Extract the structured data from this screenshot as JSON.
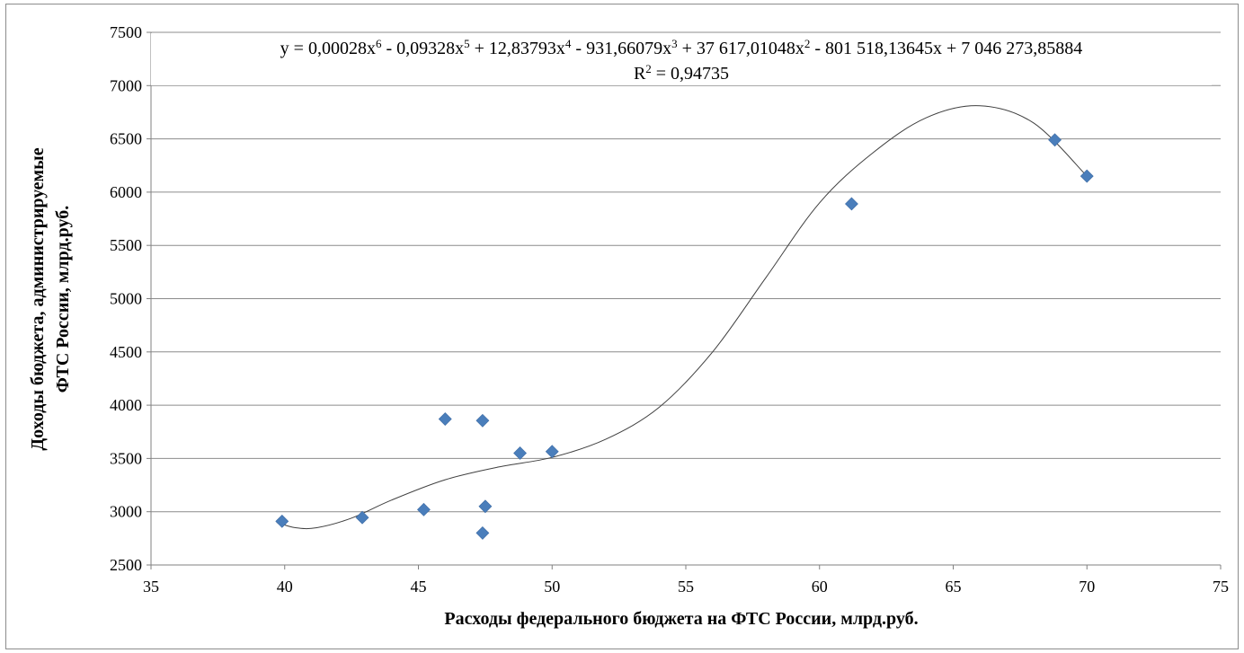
{
  "chart_data": {
    "type": "scatter",
    "title": "",
    "xlabel": "Расходы федерального бюджета на ФТС России, млрд.руб.",
    "ylabel_line1": "Доходы бюджета, администрируемые",
    "ylabel_line2": "ФТС России, млрд.руб.",
    "xlim": [
      35,
      75
    ],
    "ylim": [
      2500,
      7500
    ],
    "x_ticks": [
      "35",
      "40",
      "45",
      "50",
      "55",
      "60",
      "65",
      "70",
      "75"
    ],
    "y_ticks": [
      "2500",
      "3000",
      "3500",
      "4000",
      "4500",
      "5000",
      "5500",
      "6000",
      "6500",
      "7000",
      "7500"
    ],
    "grid": "horizontal",
    "legend": "none",
    "marker_color": "#4a7ebb",
    "trendline_color": "#404040",
    "points": [
      {
        "x": 39.9,
        "y": 2910
      },
      {
        "x": 42.9,
        "y": 2945
      },
      {
        "x": 45.2,
        "y": 3020
      },
      {
        "x": 46.0,
        "y": 3870
      },
      {
        "x": 47.4,
        "y": 3855
      },
      {
        "x": 47.5,
        "y": 3050
      },
      {
        "x": 47.4,
        "y": 2800
      },
      {
        "x": 48.8,
        "y": 3550
      },
      {
        "x": 50.0,
        "y": 3565
      },
      {
        "x": 61.2,
        "y": 5890
      },
      {
        "x": 68.8,
        "y": 6490
      },
      {
        "x": 70.0,
        "y": 6150
      }
    ],
    "trendline": {
      "type": "polynomial",
      "order": 6,
      "curve": [
        {
          "x": 39.7,
          "y": 2900
        },
        {
          "x": 40.4,
          "y": 2850
        },
        {
          "x": 41.2,
          "y": 2850
        },
        {
          "x": 42.5,
          "y": 2940
        },
        {
          "x": 44.0,
          "y": 3110
        },
        {
          "x": 46.0,
          "y": 3300
        },
        {
          "x": 48.0,
          "y": 3420
        },
        {
          "x": 50.0,
          "y": 3510
        },
        {
          "x": 52.0,
          "y": 3680
        },
        {
          "x": 54.0,
          "y": 3980
        },
        {
          "x": 56.0,
          "y": 4500
        },
        {
          "x": 58.0,
          "y": 5200
        },
        {
          "x": 60.0,
          "y": 5900
        },
        {
          "x": 62.0,
          "y": 6370
        },
        {
          "x": 64.0,
          "y": 6700
        },
        {
          "x": 66.0,
          "y": 6810
        },
        {
          "x": 68.0,
          "y": 6650
        },
        {
          "x": 70.0,
          "y": 6150
        }
      ]
    },
    "equation": {
      "parts": [
        {
          "t": "y = 0,00028x",
          "sup": "6"
        },
        {
          "t": " - 0,09328x",
          "sup": "5"
        },
        {
          "t": " + 12,83793x",
          "sup": "4"
        },
        {
          "t": " - 931,66079x",
          "sup": "3"
        },
        {
          "t": " + 37 617,01048x",
          "sup": "2"
        },
        {
          "t": " - 801 518,13645x + 7 046 273,85884",
          "sup": ""
        }
      ],
      "r2_prefix": "R",
      "r2_sup": "2",
      "r2_value": " = 0,94735"
    }
  }
}
